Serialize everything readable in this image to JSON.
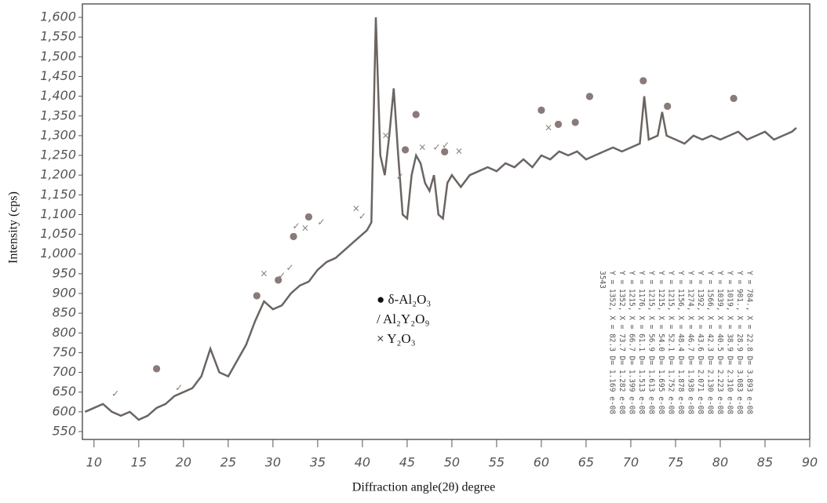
{
  "chart_data": {
    "type": "line",
    "xlabel": "Diffraction angle(2θ) degree",
    "ylabel": "Intensity (cps)",
    "color": "#6b6562",
    "xlim": [
      8.7,
      90
    ],
    "ylim": [
      530,
      1634
    ],
    "xticks": [
      10,
      15,
      20,
      25,
      30,
      35,
      40,
      45,
      50,
      55,
      60,
      65,
      70,
      75,
      80,
      85,
      90
    ],
    "yticks": [
      550,
      600,
      650,
      700,
      750,
      800,
      850,
      900,
      950,
      {
        "value": 1000,
        "label": "1,000"
      },
      {
        "value": 1050,
        "label": "1,050"
      },
      {
        "value": 1100,
        "label": "1,100"
      },
      {
        "value": 1150,
        "label": "1,150"
      },
      {
        "value": 1200,
        "label": "1,200"
      },
      {
        "value": 1250,
        "label": "1,250"
      },
      {
        "value": 1300,
        "label": "1,300"
      },
      {
        "value": 1350,
        "label": "1,350"
      },
      {
        "value": 1400,
        "label": "1,400"
      },
      {
        "value": 1450,
        "label": "1,450"
      },
      {
        "value": 1500,
        "label": "1,500"
      },
      {
        "value": 1550,
        "label": "1,550"
      },
      {
        "value": 1600,
        "label": "1,600"
      }
    ],
    "x": [
      9,
      10,
      11,
      12,
      13,
      14,
      15,
      16,
      17,
      18,
      19,
      20,
      21,
      22,
      23,
      24,
      25,
      26,
      27,
      28,
      29,
      30,
      31,
      32,
      33,
      34,
      35,
      36,
      37,
      38,
      39,
      40,
      40.5,
      41,
      41.5,
      42,
      42.5,
      43,
      43.5,
      44,
      44.5,
      45,
      45.5,
      46,
      46.5,
      47,
      47.5,
      48,
      48.5,
      49,
      49.5,
      50,
      51,
      52,
      53,
      54,
      55,
      56,
      57,
      58,
      59,
      60,
      61,
      62,
      63,
      64,
      65,
      66,
      67,
      68,
      69,
      70,
      71,
      71.5,
      72,
      73,
      73.5,
      74,
      75,
      76,
      77,
      78,
      79,
      80,
      81,
      82,
      83,
      84,
      85,
      86,
      87,
      88,
      88.5
    ],
    "values": [
      600,
      610,
      620,
      600,
      590,
      600,
      580,
      590,
      610,
      620,
      640,
      650,
      660,
      690,
      760,
      700,
      690,
      730,
      770,
      830,
      880,
      860,
      870,
      900,
      920,
      930,
      960,
      980,
      990,
      1010,
      1030,
      1050,
      1060,
      1080,
      1600,
      1250,
      1200,
      1300,
      1420,
      1250,
      1100,
      1090,
      1200,
      1250,
      1230,
      1180,
      1160,
      1200,
      1100,
      1090,
      1180,
      1200,
      1170,
      1200,
      1210,
      1220,
      1210,
      1230,
      1220,
      1240,
      1220,
      1250,
      1240,
      1260,
      1250,
      1260,
      1240,
      1250,
      1260,
      1270,
      1260,
      1270,
      1280,
      1400,
      1290,
      1300,
      1360,
      1300,
      1290,
      1280,
      1300,
      1290,
      1300,
      1290,
      1300,
      1310,
      1290,
      1300,
      1310,
      1290,
      1300,
      1310,
      1320
    ],
    "legend": [
      "● δ-Al₂O₃",
      "/ Al₂Y₂O₉",
      "×  Y₂O₃"
    ],
    "markers": [
      {
        "symbol": "●",
        "x": 17,
        "y": 710
      },
      {
        "symbol": "●",
        "x": 28.2,
        "y": 895
      },
      {
        "symbol": "●",
        "x": 30.6,
        "y": 935
      },
      {
        "symbol": "●",
        "x": 32.3,
        "y": 1045
      },
      {
        "symbol": "●",
        "x": 34,
        "y": 1095
      },
      {
        "symbol": "●",
        "x": 44.8,
        "y": 1265
      },
      {
        "symbol": "●",
        "x": 46,
        "y": 1355
      },
      {
        "symbol": "●",
        "x": 49.2,
        "y": 1260
      },
      {
        "symbol": "●",
        "x": 60,
        "y": 1365
      },
      {
        "symbol": "●",
        "x": 61.9,
        "y": 1330
      },
      {
        "symbol": "●",
        "x": 63.8,
        "y": 1335
      },
      {
        "symbol": "●",
        "x": 65.4,
        "y": 1400
      },
      {
        "symbol": "●",
        "x": 71.4,
        "y": 1440
      },
      {
        "symbol": "●",
        "x": 74.1,
        "y": 1375
      },
      {
        "symbol": "●",
        "x": 81.5,
        "y": 1395
      },
      {
        "symbol": "✓",
        "x": 12.4,
        "y": 645
      },
      {
        "symbol": "✓",
        "x": 19.5,
        "y": 660
      },
      {
        "symbol": "✓",
        "x": 31,
        "y": 945
      },
      {
        "symbol": "✓",
        "x": 31.9,
        "y": 965
      },
      {
        "symbol": "✓",
        "x": 32.6,
        "y": 1070
      },
      {
        "symbol": "✓",
        "x": 35.4,
        "y": 1080
      },
      {
        "symbol": "✓",
        "x": 40,
        "y": 1095
      },
      {
        "symbol": "✓",
        "x": 44.2,
        "y": 1195
      },
      {
        "symbol": "✓",
        "x": 48.3,
        "y": 1270
      },
      {
        "symbol": "✓",
        "x": 49.3,
        "y": 1275
      },
      {
        "symbol": "×",
        "x": 29,
        "y": 950
      },
      {
        "symbol": "×",
        "x": 33.6,
        "y": 1065
      },
      {
        "symbol": "×",
        "x": 39.3,
        "y": 1115
      },
      {
        "symbol": "×",
        "x": 42.6,
        "y": 1300
      },
      {
        "symbol": "×",
        "x": 46.7,
        "y": 1270
      },
      {
        "symbol": "×",
        "x": 50.8,
        "y": 1260
      },
      {
        "symbol": "×",
        "x": 60.8,
        "y": 1320
      }
    ],
    "peak_table": [
      "Y = 784., X = 22.8  D= 3.893 e-08",
      "Y = 901., X = 28.9  D= 3.083 e-08",
      "Y = 1019, X = 38.9  D= 2.310 e-08",
      "Y = 1039, X = 40.5  D= 2.223 e-08",
      "Y = 1566, X = 42.3  D= 2.130 e-08",
      "Y = 1392, X = 43.6  D= 2.071 e-08",
      "Y = 1274, X = 46.7  D= 1.938 e-08",
      "Y = 1156, X = 48.4  D= 1.878 e-08",
      "Y = 1215, X = 52.1  D= 1.752 e-08",
      "Y = 1215, X = 54.0  D= 1.695 e-08",
      "Y = 1215, X = 56.9  D= 1.613 e-08",
      "Y = 1176, X = 61.1  D= 1.513 e-08",
      "Y = 1215, X = 66.7  D= 1.399 e-08",
      "Y = 1352, X = 73.7  D= 1.282 e-08",
      "Y = 1352, X = 82.3  D= 1.169 e-08",
      "3543"
    ]
  }
}
